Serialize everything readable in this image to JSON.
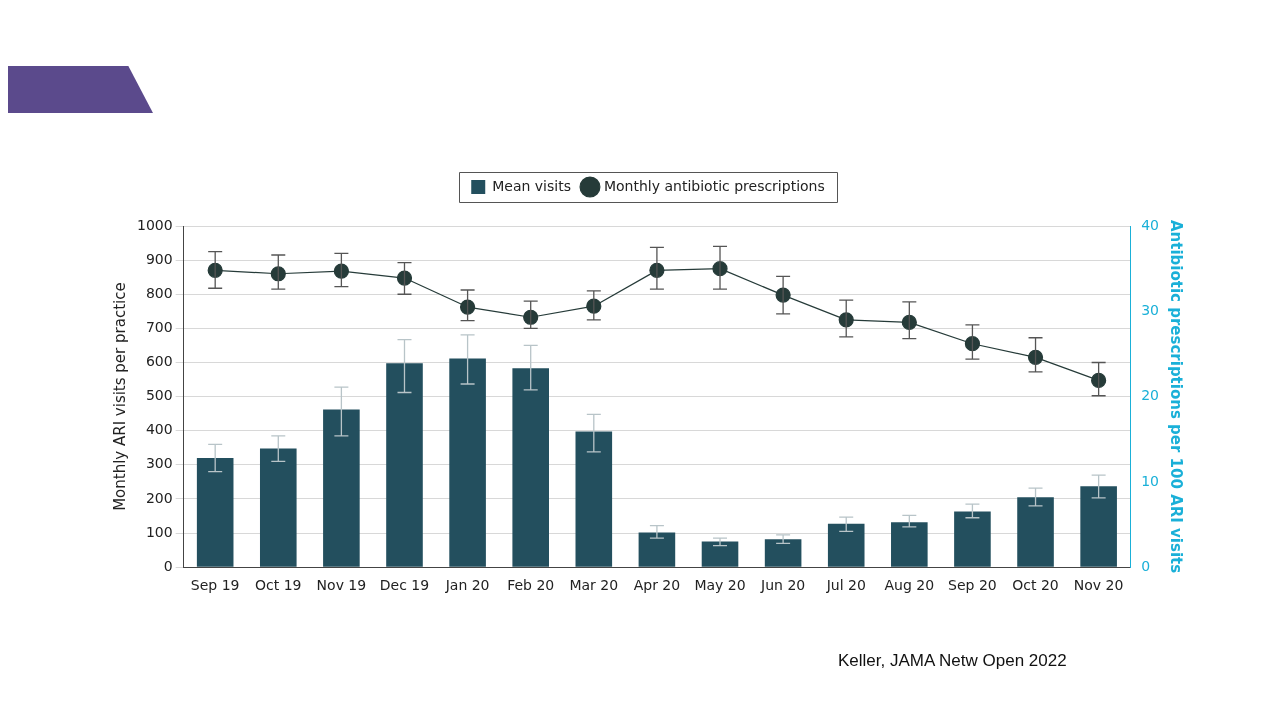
{
  "chart_data": {
    "type": "bar",
    "categories": [
      "Sep 19",
      "Oct 19",
      "Nov 19",
      "Dec 19",
      "Jan 20",
      "Feb 20",
      "Mar 20",
      "Apr 20",
      "May 20",
      "Jun 20",
      "Jul 20",
      "Aug 20",
      "Sep 20",
      "Oct 20",
      "Nov 20"
    ],
    "ylabel": "Monthly ARI visits per practice",
    "y2label": "Antibiotic prescriptions per 100 ARI visits",
    "ylim": [
      0,
      1000
    ],
    "yticks": [
      0,
      100,
      200,
      300,
      400,
      500,
      600,
      700,
      800,
      900,
      1000
    ],
    "y2lim": [
      0,
      40
    ],
    "y2ticks": [
      0,
      10,
      20,
      30,
      40
    ],
    "grid": "y",
    "legend": "top",
    "series": [
      {
        "name": "Mean visits",
        "color": "#234f5e",
        "values": [
          320,
          348,
          462,
          598,
          612,
          583,
          398,
          102,
          75,
          82,
          127,
          132,
          163,
          205,
          237
        ],
        "errors": [
          [
            280,
            360
          ],
          [
            310,
            385
          ],
          [
            385,
            528
          ],
          [
            512,
            667
          ],
          [
            537,
            681
          ],
          [
            520,
            650
          ],
          [
            338,
            448
          ],
          [
            85,
            122
          ],
          [
            63,
            85
          ],
          [
            70,
            95
          ],
          [
            105,
            147
          ],
          [
            118,
            152
          ],
          [
            145,
            185
          ],
          [
            180,
            232
          ],
          [
            203,
            270
          ]
        ]
      },
      {
        "name": "Monthly antibiotic prescriptions",
        "type": "line",
        "axis": "y2",
        "marker": "circle",
        "color": "#263b39",
        "values": [
          34.8,
          34.4,
          34.7,
          33.9,
          30.5,
          29.3,
          30.6,
          34.8,
          35.0,
          31.9,
          29.0,
          28.7,
          26.2,
          24.6,
          21.9
        ],
        "errors": [
          [
            32.7,
            37.0
          ],
          [
            32.6,
            36.6
          ],
          [
            32.9,
            36.8
          ],
          [
            32.0,
            35.7
          ],
          [
            28.9,
            32.5
          ],
          [
            28.0,
            31.2
          ],
          [
            29.0,
            32.4
          ],
          [
            32.6,
            37.5
          ],
          [
            32.6,
            37.6
          ],
          [
            29.7,
            34.1
          ],
          [
            27.0,
            31.3
          ],
          [
            26.8,
            31.1
          ],
          [
            24.4,
            28.4
          ],
          [
            22.9,
            26.9
          ],
          [
            20.1,
            24.0
          ]
        ]
      }
    ],
    "annotations": [
      "Keller, JAMA Netw Open 2022"
    ]
  }
}
